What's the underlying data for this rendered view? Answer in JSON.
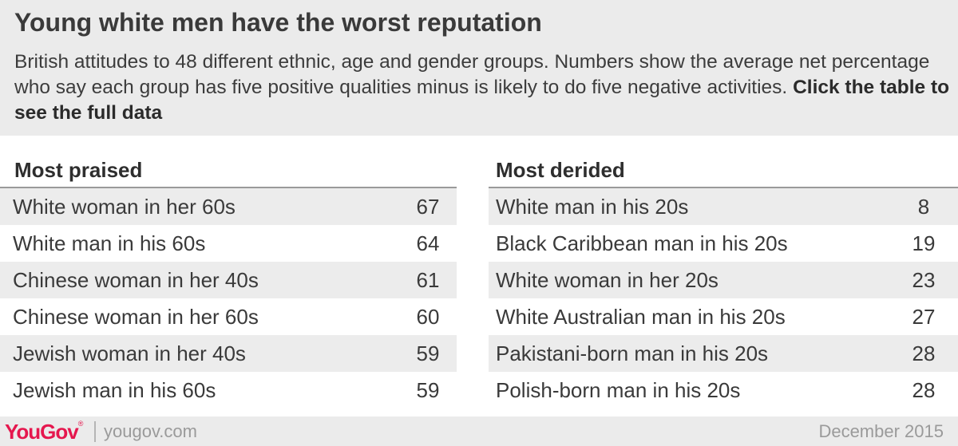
{
  "header": {
    "title": "Young white men have the worst reputation",
    "subtitle": "British attitudes to 48 different ethnic, age and gender groups. Numbers show the average net percentage who say each group has five positive qualities minus is likely to do five negative activities.",
    "subtitle_bold": "Click the table to see the full data"
  },
  "chart_data": {
    "type": "table",
    "tables": [
      {
        "title": "Most praised",
        "rows": [
          {
            "label": "White woman in her 60s",
            "value": 67
          },
          {
            "label": "White man in his 60s",
            "value": 64
          },
          {
            "label": "Chinese woman in her 40s",
            "value": 61
          },
          {
            "label": "Chinese woman in her 60s",
            "value": 60
          },
          {
            "label": "Jewish woman in her 40s",
            "value": 59
          },
          {
            "label": "Jewish man in his 60s",
            "value": 59
          }
        ]
      },
      {
        "title": "Most derided",
        "rows": [
          {
            "label": "White man in his 20s",
            "value": 8
          },
          {
            "label": "Black Caribbean man in his 20s",
            "value": 19
          },
          {
            "label": "White woman in her 20s",
            "value": 23
          },
          {
            "label": "White Australian man in his 20s",
            "value": 27
          },
          {
            "label": "Pakistani-born man in his 20s",
            "value": 28
          },
          {
            "label": "Polish-born man in his 20s",
            "value": 28
          }
        ]
      }
    ]
  },
  "footer": {
    "logo": "YouGov",
    "site": "yougov.com",
    "date": "December 2015"
  },
  "colors": {
    "brand": "#e5174e",
    "band": "#ebebeb"
  }
}
